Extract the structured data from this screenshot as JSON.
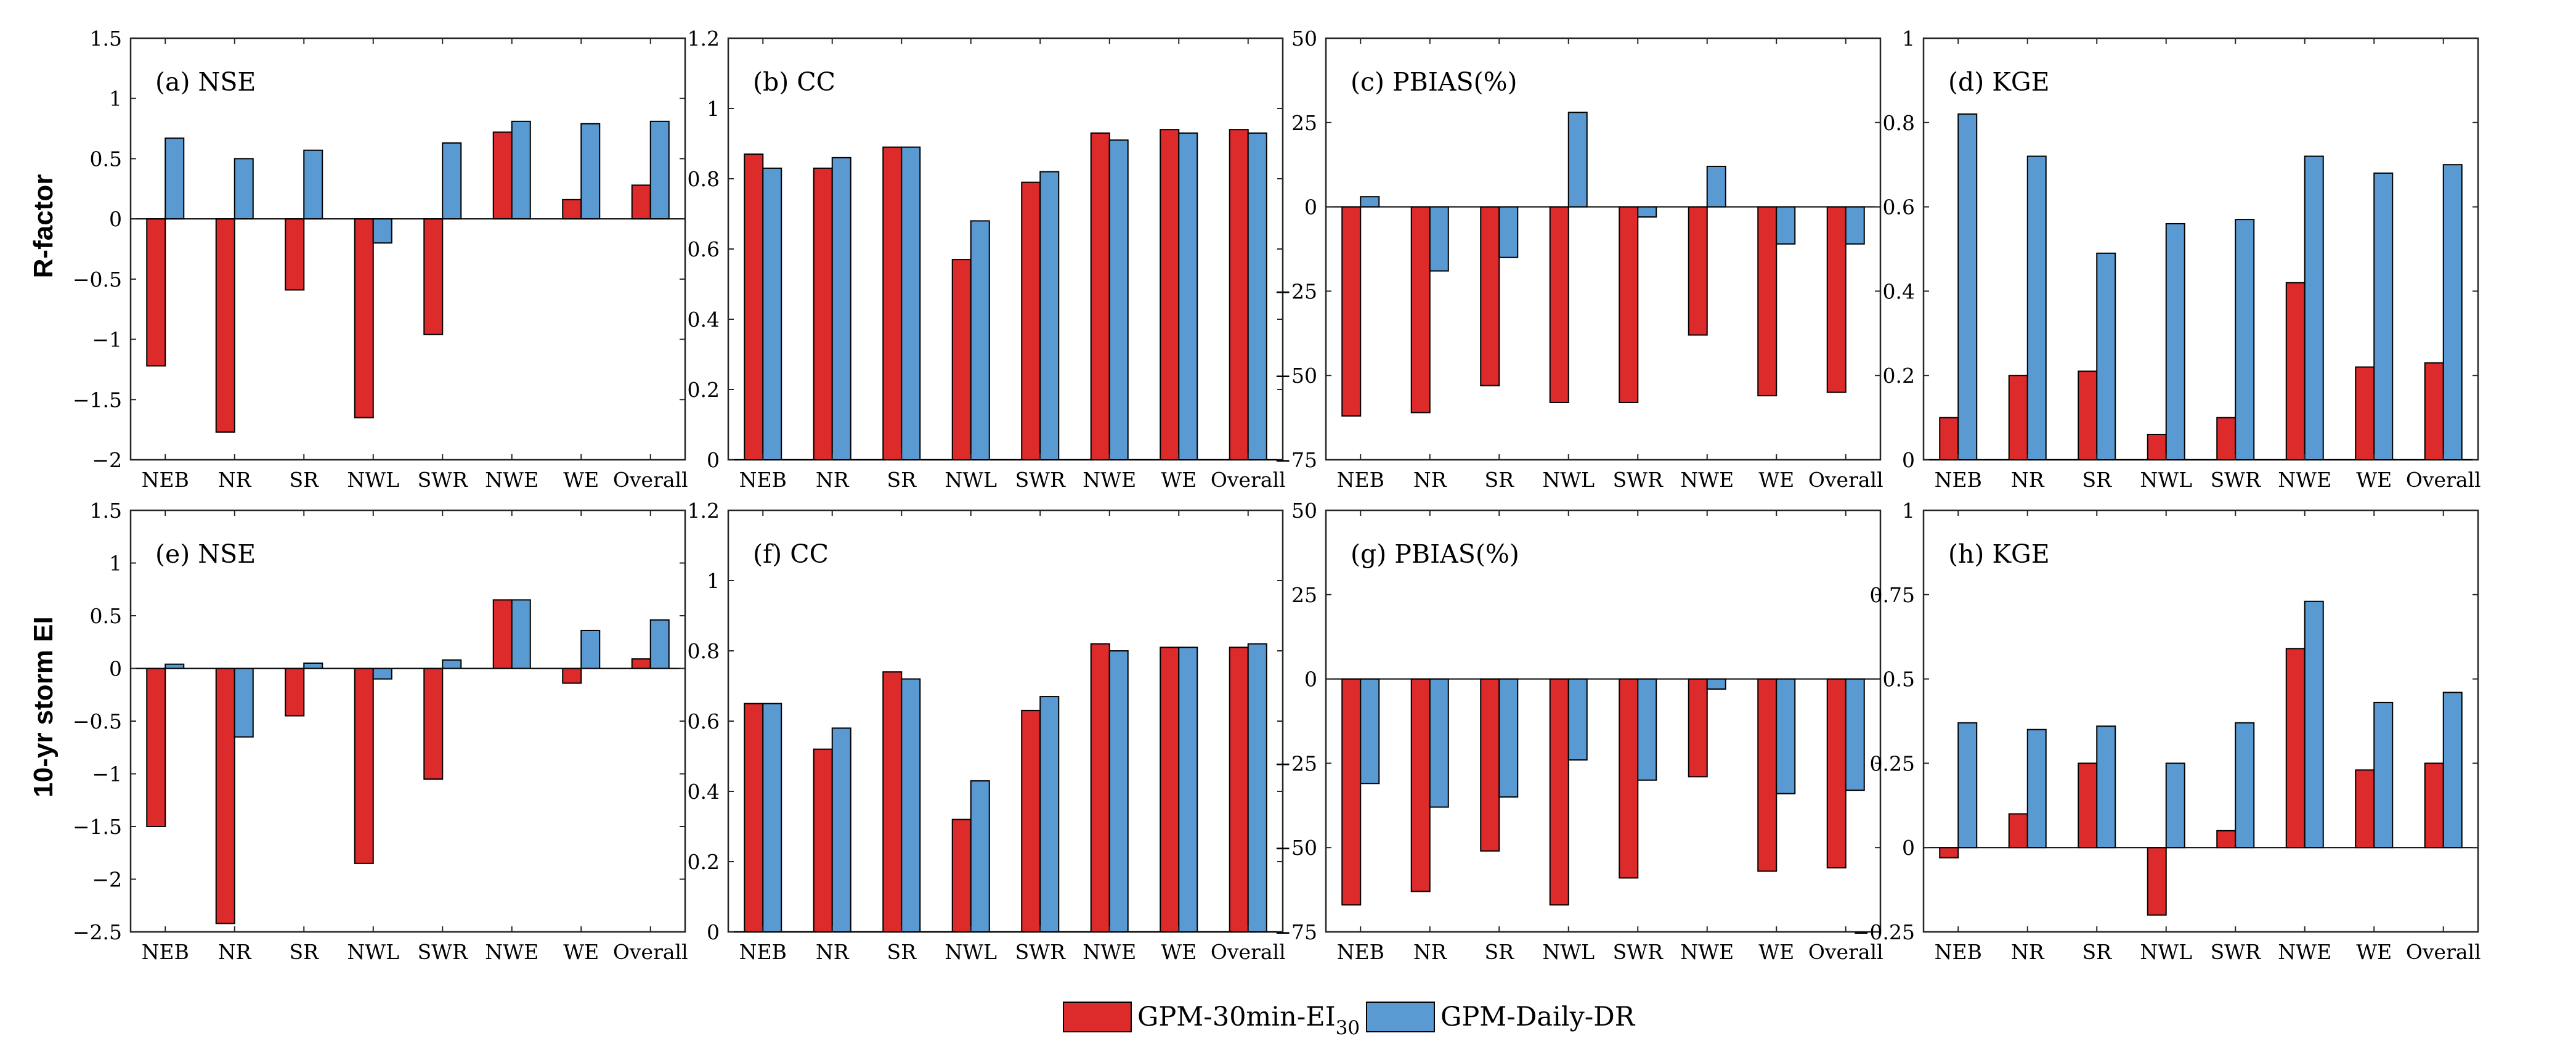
{
  "row_labels": [
    "R-factor",
    "10-yr storm EI"
  ],
  "legend": {
    "items": [
      {
        "label": "GPM-30min-EI",
        "subscript": "30",
        "color": "#dd2a2a"
      },
      {
        "label": "GPM-Daily-DR",
        "color": "#5a9ad2"
      }
    ]
  },
  "chart_data": [
    {
      "type": "bar",
      "title": "(a) NSE",
      "categories": [
        "NEB",
        "NR",
        "SR",
        "NWL",
        "SWR",
        "NWE",
        "WE",
        "Overall"
      ],
      "series": [
        {
          "name": "GPM-30min-EI30",
          "values": [
            -1.22,
            -1.77,
            -0.59,
            -1.65,
            -0.96,
            0.72,
            0.16,
            0.28
          ]
        },
        {
          "name": "GPM-Daily-DR",
          "values": [
            0.67,
            0.5,
            0.57,
            -0.2,
            0.63,
            0.81,
            0.79,
            0.81
          ]
        }
      ],
      "ylim": [
        -2,
        1.5
      ],
      "yticks": [
        -2,
        -1.5,
        -1,
        -0.5,
        0,
        0.5,
        1,
        1.5
      ],
      "ytick_labels": [
        "−2",
        "−1.5",
        "−1",
        "−0.5",
        "0",
        "0.5",
        "1",
        "1.5"
      ]
    },
    {
      "type": "bar",
      "title": "(b) CC",
      "categories": [
        "NEB",
        "NR",
        "SR",
        "NWL",
        "SWR",
        "NWE",
        "WE",
        "Overall"
      ],
      "series": [
        {
          "name": "GPM-30min-EI30",
          "values": [
            0.87,
            0.83,
            0.89,
            0.57,
            0.79,
            0.93,
            0.94,
            0.94
          ]
        },
        {
          "name": "GPM-Daily-DR",
          "values": [
            0.83,
            0.86,
            0.89,
            0.68,
            0.82,
            0.91,
            0.93,
            0.93
          ]
        }
      ],
      "ylim": [
        0,
        1.2
      ],
      "yticks": [
        0,
        0.2,
        0.4,
        0.6,
        0.8,
        1,
        1.2
      ],
      "ytick_labels": [
        "0",
        "0.2",
        "0.4",
        "0.6",
        "0.8",
        "1",
        "1.2"
      ]
    },
    {
      "type": "bar",
      "title": "(c) PBIAS(%)",
      "categories": [
        "NEB",
        "NR",
        "SR",
        "NWL",
        "SWR",
        "NWE",
        "WE",
        "Overall"
      ],
      "series": [
        {
          "name": "GPM-30min-EI30",
          "values": [
            -62,
            -61,
            -53,
            -58,
            -58,
            -38,
            -56,
            -55
          ]
        },
        {
          "name": "GPM-Daily-DR",
          "values": [
            3,
            -19,
            -15,
            28,
            -3,
            12,
            -11,
            -11
          ]
        }
      ],
      "ylim": [
        -75,
        50
      ],
      "yticks": [
        -75,
        -50,
        -25,
        0,
        25,
        50
      ],
      "ytick_labels": [
        "−75",
        "−50",
        "−25",
        "0",
        "25",
        "50"
      ]
    },
    {
      "type": "bar",
      "title": "(d) KGE",
      "categories": [
        "NEB",
        "NR",
        "SR",
        "NWL",
        "SWR",
        "NWE",
        "WE",
        "Overall"
      ],
      "series": [
        {
          "name": "GPM-30min-EI30",
          "values": [
            0.1,
            0.2,
            0.21,
            0.06,
            0.1,
            0.42,
            0.22,
            0.23
          ]
        },
        {
          "name": "GPM-Daily-DR",
          "values": [
            0.82,
            0.72,
            0.49,
            0.56,
            0.57,
            0.72,
            0.68,
            0.7
          ]
        }
      ],
      "ylim": [
        0,
        1
      ],
      "yticks": [
        0,
        0.2,
        0.4,
        0.6,
        0.8,
        1
      ],
      "ytick_labels": [
        "0",
        "0.2",
        "0.4",
        "0.6",
        "0.8",
        "1"
      ]
    },
    {
      "type": "bar",
      "title": "(e) NSE",
      "categories": [
        "NEB",
        "NR",
        "SR",
        "NWL",
        "SWR",
        "NWE",
        "WE",
        "Overall"
      ],
      "series": [
        {
          "name": "GPM-30min-EI30",
          "values": [
            -1.5,
            -2.42,
            -0.45,
            -1.85,
            -1.05,
            0.65,
            -0.14,
            0.09
          ]
        },
        {
          "name": "GPM-Daily-DR",
          "values": [
            0.04,
            -0.65,
            0.05,
            -0.1,
            0.08,
            0.65,
            0.36,
            0.46
          ]
        }
      ],
      "ylim": [
        -2.5,
        1.5
      ],
      "yticks": [
        -2.5,
        -2,
        -1.5,
        -1,
        -0.5,
        0,
        0.5,
        1,
        1.5
      ],
      "ytick_labels": [
        "−2.5",
        "−2",
        "−1.5",
        "−1",
        "−0.5",
        "0",
        "0.5",
        "1",
        "1.5"
      ]
    },
    {
      "type": "bar",
      "title": "(f) CC",
      "categories": [
        "NEB",
        "NR",
        "SR",
        "NWL",
        "SWR",
        "NWE",
        "WE",
        "Overall"
      ],
      "series": [
        {
          "name": "GPM-30min-EI30",
          "values": [
            0.65,
            0.52,
            0.74,
            0.32,
            0.63,
            0.82,
            0.81,
            0.81
          ]
        },
        {
          "name": "GPM-Daily-DR",
          "values": [
            0.65,
            0.58,
            0.72,
            0.43,
            0.67,
            0.8,
            0.81,
            0.82
          ]
        }
      ],
      "ylim": [
        0,
        1.2
      ],
      "yticks": [
        0,
        0.2,
        0.4,
        0.6,
        0.8,
        1,
        1.2
      ],
      "ytick_labels": [
        "0",
        "0.2",
        "0.4",
        "0.6",
        "0.8",
        "1",
        "1.2"
      ]
    },
    {
      "type": "bar",
      "title": "(g) PBIAS(%)",
      "categories": [
        "NEB",
        "NR",
        "SR",
        "NWL",
        "SWR",
        "NWE",
        "WE",
        "Overall"
      ],
      "series": [
        {
          "name": "GPM-30min-EI30",
          "values": [
            -67,
            -63,
            -51,
            -67,
            -59,
            -29,
            -57,
            -56
          ]
        },
        {
          "name": "GPM-Daily-DR",
          "values": [
            -31,
            -38,
            -35,
            -24,
            -30,
            -3,
            -34,
            -33
          ]
        }
      ],
      "ylim": [
        -75,
        50
      ],
      "yticks": [
        -75,
        -50,
        -25,
        0,
        25,
        50
      ],
      "ytick_labels": [
        "−75",
        "−50",
        "−25",
        "0",
        "25",
        "50"
      ]
    },
    {
      "type": "bar",
      "title": "(h) KGE",
      "categories": [
        "NEB",
        "NR",
        "SR",
        "NWL",
        "SWR",
        "NWE",
        "WE",
        "Overall"
      ],
      "series": [
        {
          "name": "GPM-30min-EI30",
          "values": [
            -0.03,
            0.1,
            0.25,
            -0.2,
            0.05,
            0.59,
            0.23,
            0.25
          ]
        },
        {
          "name": "GPM-Daily-DR",
          "values": [
            0.37,
            0.35,
            0.36,
            0.25,
            0.37,
            0.73,
            0.43,
            0.46
          ]
        }
      ],
      "ylim": [
        -0.25,
        1
      ],
      "yticks": [
        -0.25,
        0,
        0.25,
        0.5,
        0.75,
        1
      ],
      "ytick_labels": [
        "−0.25",
        "0",
        "0.25",
        "0.5",
        "0.75",
        "1"
      ]
    }
  ]
}
